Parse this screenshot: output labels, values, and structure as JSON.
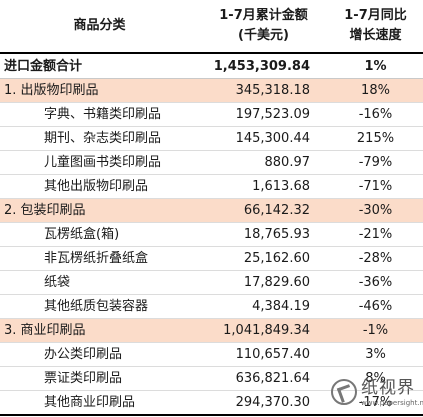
{
  "header": {
    "col1": "商品分类",
    "col2_line1": "1-7月累计金额",
    "col2_line2": "(千美元)",
    "col3_line1": "1-7月同比",
    "col3_line2": "增长速度"
  },
  "total": {
    "name": "进口金额合计",
    "amount": "1,453,309.84",
    "growth": "1%"
  },
  "rows": [
    {
      "name": "1. 出版物印刷品",
      "amount": "345,318.18",
      "growth": "18%"
    },
    {
      "name": "字典、书籍类印刷品",
      "amount": "197,523.09",
      "growth": "-16%"
    },
    {
      "name": "期刊、杂志类印刷品",
      "amount": "145,300.44",
      "growth": "215%"
    },
    {
      "name": "儿童图画书类印刷品",
      "amount": "880.97",
      "growth": "-79%"
    },
    {
      "name": "其他出版物印刷品",
      "amount": "1,613.68",
      "growth": "-71%"
    },
    {
      "name": "2. 包装印刷品",
      "amount": "66,142.32",
      "growth": "-30%"
    },
    {
      "name": "瓦楞纸盒(箱)",
      "amount": "18,765.93",
      "growth": "-21%"
    },
    {
      "name": "非瓦楞纸折叠纸盒",
      "amount": "25,162.60",
      "growth": "-28%"
    },
    {
      "name": "纸袋",
      "amount": "17,829.60",
      "growth": "-36%"
    },
    {
      "name": "其他纸质包装容器",
      "amount": "4,384.19",
      "growth": "-46%"
    },
    {
      "name": "3. 商业印刷品",
      "amount": "1,041,849.34",
      "growth": "-1%"
    },
    {
      "name": "办公类印刷品",
      "amount": "110,657.40",
      "growth": "3%"
    },
    {
      "name": "票证类印刷品",
      "amount": "636,821.64",
      "growth": "8%"
    },
    {
      "name": "其他商业印刷品",
      "amount": "294,370.30",
      "growth": "-17%"
    }
  ],
  "watermark": {
    "brand": "纸视界",
    "url": "www.papersight.net"
  }
}
